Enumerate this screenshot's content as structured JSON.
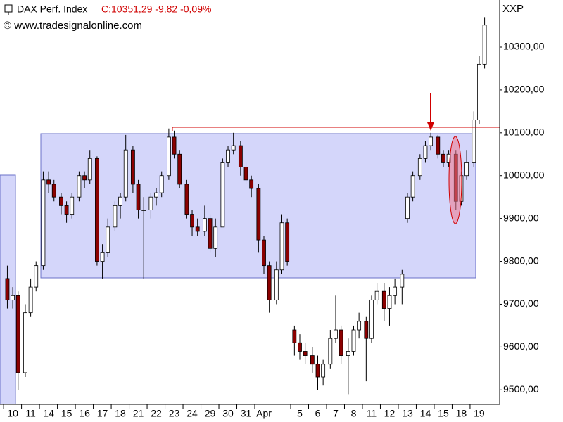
{
  "chart_data": {
    "type": "candlestick",
    "title": "DAX Perf. Index",
    "quote": "C:10351,29 -9,82 -0,09%",
    "source": "© www.tradesignalonline.com",
    "y_axis_title": "XXP",
    "up_color": "#ffffff",
    "down_color": "#8b0000",
    "xlim": [
      -0.71,
      27.14
    ],
    "ylim": [
      9466,
      10410
    ],
    "xticks": [
      {
        "value": 0,
        "label": "10"
      },
      {
        "value": 1,
        "label": "11"
      },
      {
        "value": 2,
        "label": "14"
      },
      {
        "value": 3,
        "label": "15"
      },
      {
        "value": 4,
        "label": "16"
      },
      {
        "value": 5,
        "label": "17"
      },
      {
        "value": 6,
        "label": "18"
      },
      {
        "value": 7,
        "label": "21"
      },
      {
        "value": 8,
        "label": "22"
      },
      {
        "value": 9,
        "label": "23"
      },
      {
        "value": 10,
        "label": "24"
      },
      {
        "value": 11,
        "label": "29"
      },
      {
        "value": 12,
        "label": "30"
      },
      {
        "value": 13,
        "label": "31"
      },
      {
        "value": 14,
        "label": "Apr"
      },
      {
        "value": 16,
        "label": "5"
      },
      {
        "value": 17,
        "label": "6"
      },
      {
        "value": 18,
        "label": "7"
      },
      {
        "value": 19,
        "label": "8"
      },
      {
        "value": 20,
        "label": "11"
      },
      {
        "value": 21,
        "label": "12"
      },
      {
        "value": 22,
        "label": "13"
      },
      {
        "value": 23,
        "label": "14"
      },
      {
        "value": 24,
        "label": "15"
      },
      {
        "value": 25,
        "label": "18"
      },
      {
        "value": 26,
        "label": "19"
      }
    ],
    "yticks": [
      {
        "value": 9500,
        "label": "9500,00"
      },
      {
        "value": 9600,
        "label": "9600,00"
      },
      {
        "value": 9700,
        "label": "9700,00"
      },
      {
        "value": 9800,
        "label": "9800,00"
      },
      {
        "value": 9900,
        "label": "9900,00"
      },
      {
        "value": 10000,
        "label": "10000,00"
      },
      {
        "value": 10100,
        "label": "10100,00"
      },
      {
        "value": 10200,
        "label": "10200,00"
      },
      {
        "value": 10300,
        "label": "10300,00"
      }
    ],
    "series": [
      {
        "name": "DAX Perf. Index",
        "x": [
          -0.3,
          0,
          0.3,
          0.7,
          1,
          1.3,
          1.7,
          2,
          2.3,
          2.7,
          3,
          3.3,
          3.7,
          4,
          4.3,
          4.7,
          5,
          5.3,
          5.7,
          6,
          6.3,
          6.7,
          7,
          7.3,
          7.7,
          8,
          8.3,
          8.7,
          9,
          9.3,
          9.7,
          10,
          10.3,
          10.7,
          11,
          11.3,
          11.7,
          12,
          12.3,
          12.7,
          13,
          13.3,
          13.7,
          14,
          14.3,
          14.7,
          15,
          15.3,
          15.7,
          16,
          16.3,
          16.7,
          17,
          17.3,
          17.7,
          18,
          18.3,
          18.7,
          19,
          19.3,
          19.7,
          20,
          20.3,
          20.7,
          21,
          21.3,
          21.7,
          22,
          22.3,
          22.7,
          23,
          23.3,
          23.7,
          24,
          24.3,
          24.7,
          25,
          25.3,
          25.7,
          26,
          26.3
        ],
        "open": [
          9760,
          9710,
          9720,
          9540,
          9680,
          9740,
          9790,
          9990,
          9980,
          9950,
          9930,
          9910,
          9950,
          10000,
          9990,
          10040,
          9800,
          9820,
          9880,
          9930,
          9950,
          10060,
          9980,
          9920,
          9920,
          9950,
          9960,
          10000,
          10090,
          10050,
          9980,
          9910,
          9880,
          9870,
          9900,
          9830,
          9880,
          10030,
          10060,
          10070,
          10020,
          9990,
          9970,
          9850,
          9790,
          9710,
          9780,
          9890,
          9640,
          9610,
          9590,
          9580,
          9560,
          9530,
          9560,
          9620,
          9640,
          9580,
          9590,
          9640,
          9660,
          9620,
          9710,
          9730,
          9690,
          9720,
          9740,
          9900,
          9950,
          10000,
          10040,
          10070,
          10090,
          10050,
          10030,
          10050,
          9940,
          10000,
          10030,
          10130,
          10260
        ],
        "high": [
          9790,
          9740,
          9730,
          9700,
          9760,
          9800,
          10010,
          10010,
          9990,
          9960,
          9940,
          9960,
          10010,
          10010,
          10060,
          10045,
          9840,
          9900,
          9940,
          9960,
          10095,
          10070,
          9990,
          9950,
          9960,
          9970,
          10010,
          10110,
          10105,
          10060,
          9990,
          9920,
          9900,
          9930,
          9910,
          9900,
          10040,
          10070,
          10100,
          10080,
          10030,
          10000,
          9980,
          9860,
          9800,
          9800,
          9910,
          9900,
          9650,
          9630,
          9610,
          9600,
          9580,
          9570,
          9640,
          9720,
          9650,
          9620,
          9650,
          9680,
          9670,
          9720,
          9750,
          9750,
          9740,
          9760,
          9780,
          9960,
          10010,
          10050,
          10080,
          10100,
          10095,
          10060,
          10060,
          10060,
          10010,
          10060,
          10150,
          10280,
          10370
        ],
        "low": [
          9690,
          9690,
          9500,
          9530,
          9670,
          9730,
          9780,
          9960,
          9940,
          9910,
          9890,
          9900,
          9940,
          9970,
          9980,
          9790,
          9760,
          9810,
          9870,
          9900,
          9940,
          9960,
          9900,
          9760,
          9900,
          9930,
          9950,
          9990,
          10040,
          9970,
          9900,
          9860,
          9860,
          9860,
          9820,
          9810,
          9880,
          10020,
          10050,
          10000,
          9980,
          9950,
          9820,
          9770,
          9680,
          9700,
          9770,
          9790,
          9580,
          9570,
          9560,
          9540,
          9500,
          9510,
          9550,
          9610,
          9560,
          9490,
          9580,
          9620,
          9520,
          9610,
          9700,
          9660,
          9650,
          9700,
          9700,
          9890,
          9940,
          9990,
          10030,
          10060,
          10040,
          10020,
          10020,
          9920,
          9930,
          9990,
          10020,
          10120,
          10250
        ],
        "close": [
          9710,
          9720,
          9540,
          9680,
          9740,
          9790,
          9990,
          9980,
          9950,
          9930,
          9910,
          9950,
          10000,
          9990,
          10040,
          9800,
          9820,
          9880,
          9930,
          9950,
          10060,
          9980,
          9920,
          9920,
          9950,
          9960,
          10000,
          10090,
          10050,
          9980,
          9910,
          9880,
          9870,
          9900,
          9830,
          9880,
          10030,
          10060,
          10070,
          10020,
          9990,
          9970,
          9850,
          9790,
          9710,
          9780,
          9890,
          9800,
          9610,
          9590,
          9580,
          9560,
          9530,
          9560,
          9620,
          9640,
          9580,
          9590,
          9640,
          9660,
          9620,
          9710,
          9730,
          9690,
          9720,
          9740,
          9770,
          9950,
          10000,
          10040,
          10070,
          10090,
          10050,
          10030,
          10050,
          9940,
          10000,
          10030,
          10130,
          10260,
          10351.29
        ]
      }
    ]
  }
}
